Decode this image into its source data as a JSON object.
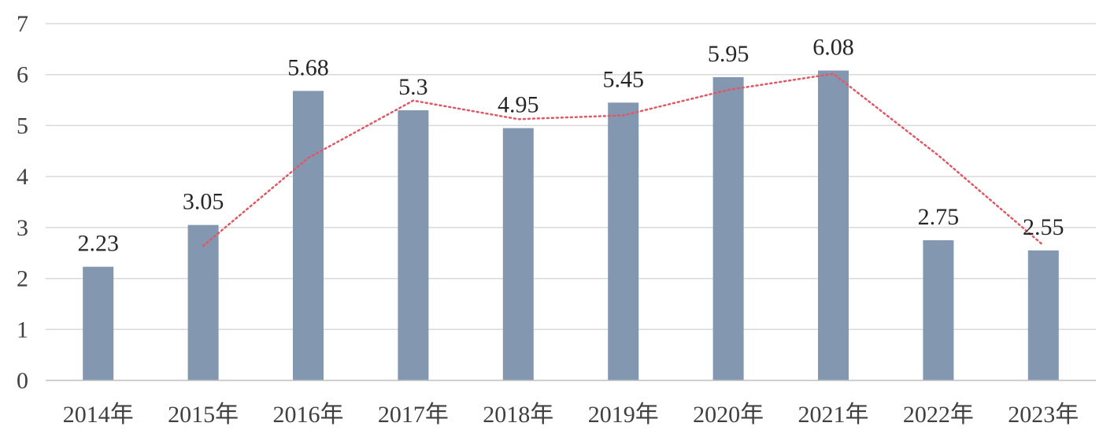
{
  "chart_data": {
    "type": "bar",
    "categories": [
      "2014年",
      "2015年",
      "2016年",
      "2017年",
      "2018年",
      "2019年",
      "2020年",
      "2021年",
      "2022年",
      "2023年"
    ],
    "series": [
      {
        "values": [
          2.23,
          3.05,
          5.68,
          5.3,
          4.95,
          5.45,
          5.95,
          6.08,
          2.75,
          2.55
        ],
        "color": "#8497b0"
      }
    ],
    "data_labels": [
      "2.23",
      "3.05",
      "5.68",
      "5.3",
      "4.95",
      "5.45",
      "5.95",
      "6.08",
      "2.75",
      "2.55"
    ],
    "trendline": {
      "type": "moving-average",
      "period": 2,
      "color": "#e15765",
      "style": "dotted"
    },
    "ylim": [
      0,
      7
    ],
    "yticks": [
      "0",
      "1",
      "2",
      "3",
      "4",
      "5",
      "6",
      "7"
    ],
    "grid": true,
    "legend": "none",
    "title": "",
    "xlabel": "",
    "ylabel": ""
  }
}
